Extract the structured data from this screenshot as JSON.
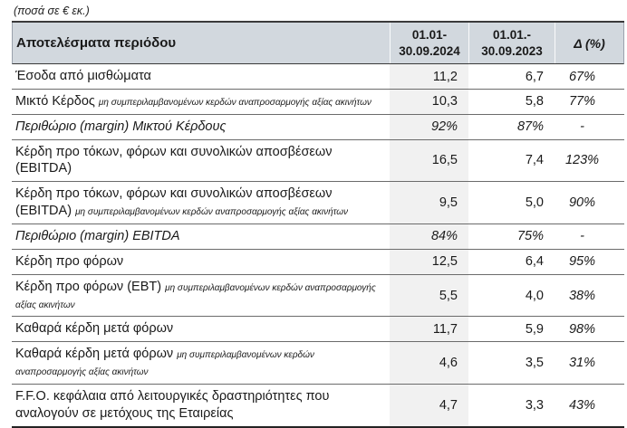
{
  "note": "(ποσά σε € εκ.)",
  "colors": {
    "header_bg": "#d2d8de",
    "column_shade": "#f1f1f1",
    "border_dark": "#3a3a3a",
    "border_row": "#6b6b6b",
    "text": "#1a1a1a"
  },
  "table": {
    "header": {
      "results_label": "Αποτελέσματα περιόδου",
      "period_2024_line1": "01.01-",
      "period_2024_line2": "30.09.2024",
      "period_2023_line1": "01.01.-",
      "period_2023_line2": "30.09.2023",
      "delta_label": "Δ (%)"
    },
    "rows": [
      {
        "label": "Έσοδα από μισθώματα",
        "sub": "",
        "v2024": "11,2",
        "v2023": "6,7",
        "delta": "67%",
        "em": false
      },
      {
        "label": "Μικτό Κέρδος",
        "sub": "μη συμπεριλαμβανομένων κερδών αναπροσαρμογής αξίας ακινήτων",
        "v2024": "10,3",
        "v2023": "5,8",
        "delta": "77%",
        "em": false
      },
      {
        "label": "Περιθώριο (margin) Μικτού Κέρδους",
        "sub": "",
        "v2024": "92%",
        "v2023": "87%",
        "delta": "-",
        "em": true
      },
      {
        "label": "Κέρδη προ τόκων, φόρων και συνολικών αποσβέσεων (EBITDA)",
        "sub": "",
        "v2024": "16,5",
        "v2023": "7,4",
        "delta": "123%",
        "em": false
      },
      {
        "label": "Κέρδη προ τόκων, φόρων και συνολικών αποσβέσεων (EBITDA)",
        "sub": "μη συμπεριλαμβανομένων κερδών αναπροσαρμογής αξίας ακινήτων",
        "v2024": "9,5",
        "v2023": "5,0",
        "delta": "90%",
        "em": false
      },
      {
        "label": "Περιθώριο (margin) EBITDA",
        "sub": "",
        "v2024": "84%",
        "v2023": "75%",
        "delta": "-",
        "em": true
      },
      {
        "label": "Κέρδη προ φόρων",
        "sub": "",
        "v2024": "12,5",
        "v2023": "6,4",
        "delta": "95%",
        "em": false
      },
      {
        "label": "Κέρδη προ φόρων (EBT)",
        "sub": "μη συμπεριλαμβανομένων κερδών αναπροσαρμογής αξίας ακινήτων",
        "v2024": "5,5",
        "v2023": "4,0",
        "delta": "38%",
        "em": false
      },
      {
        "label": "Καθαρά κέρδη μετά φόρων",
        "sub": "",
        "v2024": "11,7",
        "v2023": "5,9",
        "delta": "98%",
        "em": false
      },
      {
        "label": "Καθαρά κέρδη μετά φόρων",
        "sub": "μη συμπεριλαμβανομένων κερδών αναπροσαρμογής αξίας ακινήτων",
        "v2024": "4,6",
        "v2023": "3,5",
        "delta": "31%",
        "em": false
      },
      {
        "label": "F.F.O. κεφάλαια από λειτουργικές δραστηριότητες που αναλογούν σε μετόχους της Εταιρείας",
        "sub": "",
        "v2024": "4,7",
        "v2023": "3,3",
        "delta": "43%",
        "em": false
      }
    ]
  }
}
